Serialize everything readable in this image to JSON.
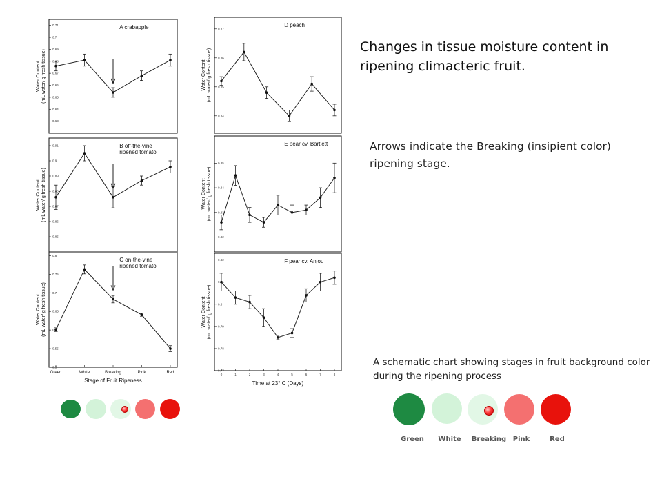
{
  "headline": "Changes in tissue moisture content in ripening climacteric fruit.",
  "note": "Arrows indicate the Breaking (insipient color) ripening stage.",
  "schematic": {
    "caption": "A schematic chart showing stages in fruit background color during the ripening process",
    "stages": [
      {
        "label": "Green",
        "color": "#1e8a42"
      },
      {
        "label": "White",
        "color": "#d3f3d9"
      },
      {
        "label": "Breaking",
        "color": "#e2f7e6"
      },
      {
        "label": "Pink",
        "color": "#f47070"
      },
      {
        "label": "Red",
        "color": "#e8120c"
      }
    ]
  },
  "chart_data": [
    {
      "type": "line",
      "id": "A",
      "title": "A  crabapple",
      "ylabel_line1": "Water Content",
      "ylabel_line2": "(mL water/ g fresh tissue)",
      "x": [
        0,
        1,
        2,
        3,
        4
      ],
      "y": [
        0.676,
        0.681,
        0.654,
        0.668,
        0.681
      ],
      "err": [
        0.004,
        0.005,
        0.004,
        0.004,
        0.005
      ],
      "ylim": [
        0.62,
        0.715
      ],
      "yticks": [
        0.63,
        0.64,
        0.65,
        0.66,
        0.67,
        0.68,
        0.69,
        0.7,
        0.71
      ],
      "arrow_x": 2
    },
    {
      "type": "line",
      "id": "B",
      "title": "B  off-the-vine\n    ripened tomato",
      "ylabel_line1": "Water Content",
      "ylabel_line2": "(mL water/ g fresh tissue)",
      "x": [
        0,
        1,
        2,
        3,
        4
      ],
      "y": [
        0.876,
        0.905,
        0.876,
        0.887,
        0.896
      ],
      "err": [
        0.008,
        0.005,
        0.007,
        0.003,
        0.004
      ],
      "ylim": [
        0.84,
        0.915
      ],
      "yticks": [
        0.85,
        0.86,
        0.87,
        0.88,
        0.89,
        0.9,
        0.91
      ],
      "arrow_x": 2
    },
    {
      "type": "line",
      "id": "C",
      "title": "C  on-the-vine\n    ripened tomato",
      "ylabel_line1": "Water Content",
      "ylabel_line2": "(mL water/ g fresh tissue)",
      "x": [
        0,
        1,
        2,
        3,
        4
      ],
      "y": [
        0.601,
        0.763,
        0.683,
        0.641,
        0.55
      ],
      "err": [
        0.005,
        0.012,
        0.01,
        0.004,
        0.008
      ],
      "ylim": [
        0.5,
        0.81
      ],
      "yticks": [
        0.5,
        0.55,
        0.6,
        0.65,
        0.7,
        0.75,
        0.8
      ],
      "arrow_x": 2,
      "categories": [
        "Green",
        "White",
        "Breaking",
        "Pink",
        "Red"
      ],
      "xlabel": "Stage of Fruit Ripeness"
    },
    {
      "type": "line",
      "id": "D",
      "title": "D  peach",
      "ylabel_line1": "Water Content",
      "ylabel_line2": "(mL water/ g fresh tissue)",
      "x": [
        0,
        1,
        2,
        3,
        4,
        5
      ],
      "y": [
        0.852,
        0.862,
        0.848,
        0.84,
        0.851,
        0.842
      ],
      "err": [
        0.0015,
        0.003,
        0.002,
        0.002,
        0.0025,
        0.002
      ],
      "ylim": [
        0.834,
        0.874
      ],
      "yticks": [
        0.84,
        0.85,
        0.86,
        0.87
      ]
    },
    {
      "type": "line",
      "id": "E",
      "title": "E  pear cv. Bartlett",
      "ylabel_line1": "Water Content",
      "ylabel_line2": "(mL water/ g fresh tissue)",
      "x": [
        0,
        1,
        2,
        3,
        4,
        5,
        6,
        7,
        8
      ],
      "y": [
        0.826,
        0.845,
        0.829,
        0.826,
        0.833,
        0.83,
        0.831,
        0.836,
        0.844
      ],
      "err": [
        0.003,
        0.004,
        0.003,
        0.002,
        0.004,
        0.003,
        0.002,
        0.004,
        0.006
      ],
      "ylim": [
        0.814,
        0.861
      ],
      "yticks": [
        0.82,
        0.83,
        0.84,
        0.85
      ]
    },
    {
      "type": "line",
      "id": "F",
      "title": "F  pear cv. Anjou",
      "ylabel_line1": "Water Content",
      "ylabel_line2": "(mL water/ g fresh tissue)",
      "x": [
        0,
        1,
        2,
        3,
        4,
        5,
        6,
        7,
        8
      ],
      "y": [
        0.81,
        0.803,
        0.801,
        0.794,
        0.785,
        0.787,
        0.804,
        0.81,
        0.812
      ],
      "err": [
        0.004,
        0.003,
        0.003,
        0.004,
        0.001,
        0.002,
        0.003,
        0.004,
        0.003
      ],
      "ylim": [
        0.77,
        0.823
      ],
      "yticks": [
        0.77,
        0.78,
        0.79,
        0.8,
        0.81,
        0.82
      ],
      "xticks": [
        0,
        1,
        2,
        3,
        4,
        5,
        6,
        7,
        8
      ],
      "xlabel": "Time at 23° C (Days)"
    }
  ]
}
